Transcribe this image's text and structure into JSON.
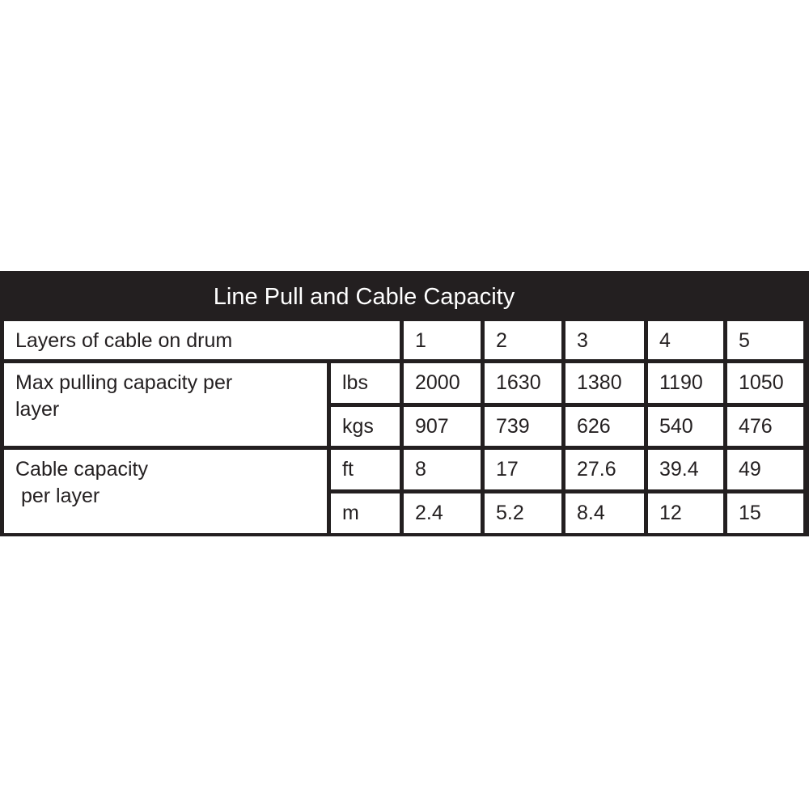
{
  "title": "Line Pull and Cable Capacity",
  "header_label": "Layers of cable on drum",
  "layers": [
    "1",
    "2",
    "3",
    "4",
    "5"
  ],
  "rows": [
    {
      "label": "Max pulling capacity per layer",
      "units": [
        {
          "unit": "lbs",
          "values": [
            "2000",
            "1630",
            "1380",
            "1190",
            "1050"
          ]
        },
        {
          "unit": "kgs",
          "values": [
            "907",
            "739",
            "626",
            "540",
            "476"
          ]
        }
      ]
    },
    {
      "label": "Cable capacity\n per layer",
      "units": [
        {
          "unit": "ft",
          "values": [
            "8",
            "17",
            "27.6",
            "39.4",
            "49"
          ]
        },
        {
          "unit": "m",
          "values": [
            "2.4",
            "5.2",
            "8.4",
            "12",
            "15"
          ]
        }
      ]
    }
  ]
}
